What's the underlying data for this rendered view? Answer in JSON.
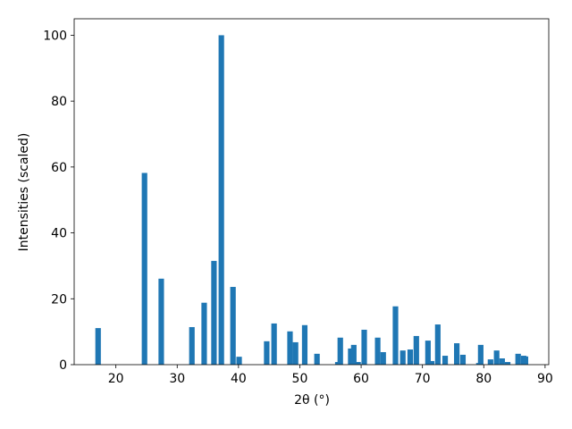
{
  "chart_data": {
    "type": "bar",
    "x_label": "2θ (°)",
    "y_label": "Intensities (scaled)",
    "x": [
      17.1,
      24.67,
      27.4,
      32.4,
      34.4,
      36.0,
      37.2,
      39.1,
      40.1,
      44.6,
      45.8,
      48.4,
      49.3,
      50.8,
      52.8,
      56.2,
      56.6,
      58.3,
      58.8,
      59.5,
      60.5,
      62.7,
      63.6,
      65.6,
      66.8,
      68.0,
      69.0,
      70.9,
      71.5,
      72.5,
      73.7,
      75.6,
      76.6,
      79.2,
      79.5,
      81.1,
      82.1,
      83.0,
      83.9,
      85.6,
      86.5,
      86.8
    ],
    "values": [
      11.1,
      58.2,
      26.1,
      11.4,
      18.8,
      31.5,
      100,
      23.6,
      2.4,
      7.1,
      12.5,
      10.1,
      6.8,
      12.0,
      3.3,
      0.8,
      8.2,
      4.9,
      6.0,
      0.8,
      10.6,
      8.2,
      3.8,
      17.7,
      4.3,
      4.6,
      8.7,
      7.3,
      1.1,
      12.2,
      2.7,
      6.5,
      3.0,
      0.5,
      6.0,
      1.6,
      4.3,
      1.9,
      0.8,
      3.3,
      2.7,
      2.5
    ],
    "color": "#1f77b4",
    "xlim": [
      13.2,
      90.6
    ],
    "xticks": [
      20,
      30,
      40,
      50,
      60,
      70,
      80,
      90
    ],
    "ylim": [
      0,
      105
    ],
    "yticks": [
      0,
      20,
      40,
      60,
      80,
      100
    ],
    "grid": false
  }
}
